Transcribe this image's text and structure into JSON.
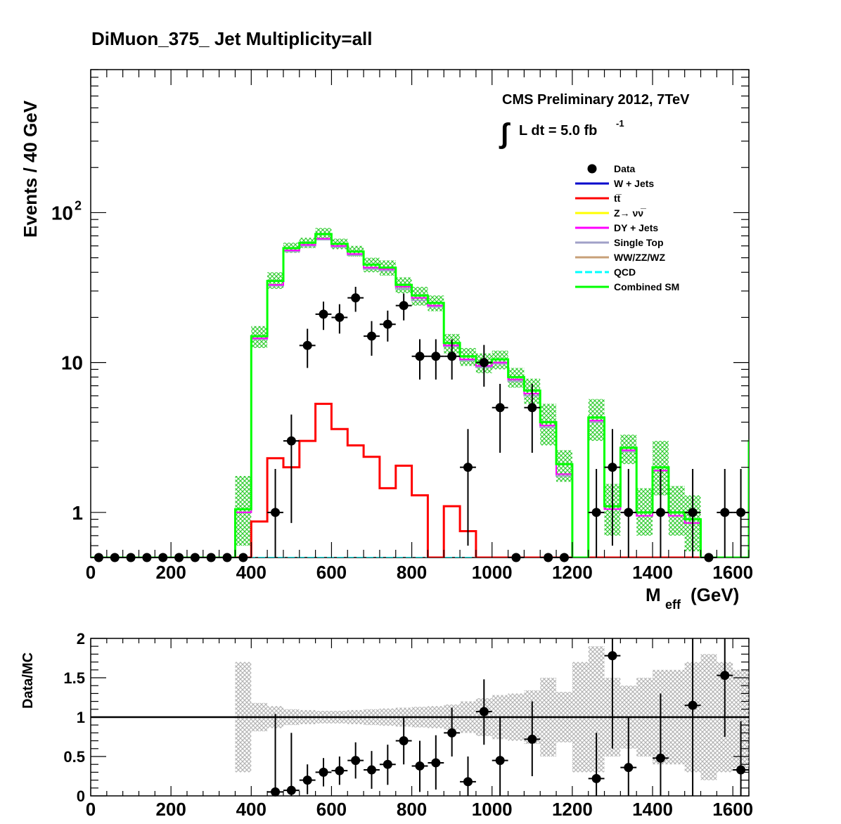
{
  "chart_data": [
    {
      "type": "step-histogram",
      "panel": "main",
      "title": "DiMuon_375_    Jet Multiplicity=all",
      "xlabel_main": "M",
      "xlabel_sub": "eff",
      "xlabel_unit": "(GeV)",
      "ylabel": "Events / 40 GeV",
      "y_scale": "log",
      "xlim": [
        0,
        1640
      ],
      "ylim": [
        0.5,
        900
      ],
      "x_ticks": [
        0,
        200,
        400,
        600,
        800,
        1000,
        1200,
        1400,
        1600
      ],
      "x_tick_labels": [
        "0",
        "200",
        "400",
        "600",
        "800",
        "1000",
        "1200",
        "1400",
        "1600"
      ],
      "y_tick_labels": [
        {
          "value": 1,
          "label": "1"
        },
        {
          "value": 10,
          "label": "10"
        },
        {
          "value": 100,
          "label_base": "10",
          "label_exp": "2"
        }
      ],
      "annotation": {
        "line1": "CMS Preliminary 2012, 7TeV",
        "integral": "∫",
        "lumi_text": "L dt = 5.0 fb",
        "lumi_exp": "-1"
      },
      "bin_width": 40,
      "bin_edges_start": 0,
      "legend": [
        {
          "label": "Data",
          "style": "marker",
          "color": "#000000"
        },
        {
          "label": "W + Jets",
          "color": "#0000cc"
        },
        {
          "label": "tt̅",
          "color": "#ff0000"
        },
        {
          "label": "Z→ νν̅",
          "color": "#ffff00"
        },
        {
          "label": "DY + Jets",
          "color": "#ff00ff"
        },
        {
          "label": "Single Top",
          "color": "#a0a0c8"
        },
        {
          "label": "WW/ZZ/WZ",
          "color": "#c8a078"
        },
        {
          "label": "QCD",
          "color": "#00ffff",
          "style": "dashed"
        },
        {
          "label": "Combined SM",
          "color": "#00ff00"
        }
      ],
      "series": [
        {
          "name": "Combined SM",
          "color": "#00ff00",
          "values": [
            0.5,
            0.5,
            0.5,
            0.5,
            0.5,
            0.5,
            0.5,
            0.5,
            0.5,
            1.05,
            15,
            35,
            58,
            63,
            72,
            62,
            55,
            45,
            43,
            33,
            28,
            25,
            13.5,
            11,
            10,
            10.5,
            8,
            6.5,
            4,
            2.1,
            0.45,
            4.3,
            1.1,
            2.7,
            1.0,
            2.0,
            1.0,
            0.9,
            0.5,
            0.5,
            0.5,
            3.0
          ],
          "band_low": [
            0.5,
            0.5,
            0.5,
            0.5,
            0.5,
            0.5,
            0.5,
            0.5,
            0.5,
            0.6,
            12.5,
            31,
            54,
            58,
            66,
            57,
            51,
            40,
            38,
            29,
            24,
            22,
            11.5,
            9.5,
            8.5,
            9,
            6.8,
            5.3,
            2.8,
            1.6,
            0.45,
            3.0,
            0.7,
            2.1,
            0.7,
            1.3,
            0.7,
            0.55,
            0.5,
            0.5,
            0.5,
            1.8
          ],
          "band_high": [
            0.5,
            0.5,
            0.5,
            0.5,
            0.5,
            0.5,
            0.5,
            0.5,
            0.5,
            1.75,
            17.5,
            40,
            63,
            68,
            79,
            67,
            60,
            50,
            48,
            37,
            32,
            28,
            15.5,
            12.5,
            11.5,
            12,
            9.2,
            7.8,
            5.3,
            2.6,
            0.45,
            5.7,
            1.55,
            3.3,
            1.45,
            3.0,
            1.5,
            1.3,
            0.5,
            0.5,
            0.5,
            4.7
          ]
        },
        {
          "name": "DY + Jets",
          "color": "#ff00ff",
          "values": [
            0.5,
            0.5,
            0.5,
            0.5,
            0.5,
            0.5,
            0.5,
            0.5,
            0.5,
            1.0,
            14.5,
            33,
            56,
            61,
            67,
            60,
            53,
            43,
            42,
            32,
            27,
            24,
            13,
            10.5,
            9.5,
            10,
            7.7,
            6.2,
            3.8,
            1.8,
            0.45,
            4.1,
            1.05,
            2.6,
            0.95,
            1.9,
            0.95,
            0.85,
            0.5,
            0.5,
            0.5,
            2.4
          ]
        },
        {
          "name": "Single Top",
          "color": "#a0a0c8",
          "values": [
            0.5,
            0.5,
            0.5,
            0.5,
            0.5,
            0.5,
            0.5,
            0.5,
            0.5,
            1.0,
            14.3,
            32.5,
            55,
            60,
            66,
            59,
            52,
            42,
            41,
            31,
            26,
            23.5,
            12.8,
            10.3,
            9.3,
            9.8,
            7.5,
            6.0,
            3.7,
            1.75,
            0.45,
            4.0,
            1.05,
            2.55,
            0.95,
            1.9,
            0.95,
            0.85,
            0.5,
            0.5,
            0.5,
            2.4
          ]
        },
        {
          "name": "tt̅",
          "color": "#ff0000",
          "values": [
            0.4,
            0.4,
            0.4,
            0.4,
            0.4,
            0.4,
            0.4,
            0.4,
            0.4,
            0.4,
            0.87,
            2.3,
            2.0,
            3.0,
            5.3,
            3.6,
            2.8,
            2.35,
            1.45,
            2.05,
            1.3,
            0.4,
            1.1,
            0.75,
            0.4,
            0.4,
            0.4,
            0.4,
            0.4,
            0.4,
            0.4,
            0.4,
            0.4,
            0.4,
            0.4,
            0.4,
            0.4,
            0.4,
            0.4,
            0.4,
            0.4,
            0.6
          ]
        },
        {
          "name": "QCD",
          "color": "#00ffff",
          "values": [
            0.5,
            0.5,
            0.5,
            0.5,
            0.5,
            0.5,
            0.5,
            0.5,
            0.5,
            0.5,
            0.5,
            0.5,
            0.5,
            0.5,
            0.5,
            0.5,
            0.5,
            0.5,
            0.5,
            0.5,
            0.5,
            0.5,
            0.5,
            0.5,
            0.5,
            0.5,
            0.5,
            0.5,
            0.5,
            0.5,
            0.5,
            0.5,
            0.5,
            0.5,
            0.5,
            0.5,
            0.5,
            0.5,
            0.5,
            0.5,
            0.5,
            0.5
          ]
        }
      ],
      "data_points": [
        {
          "x": 20,
          "y": 0.5,
          "err": 0
        },
        {
          "x": 60,
          "y": 0.5,
          "err": 0
        },
        {
          "x": 100,
          "y": 0.5,
          "err": 0
        },
        {
          "x": 140,
          "y": 0.5,
          "err": 0
        },
        {
          "x": 180,
          "y": 0.5,
          "err": 0
        },
        {
          "x": 220,
          "y": 0.5,
          "err": 0
        },
        {
          "x": 260,
          "y": 0.5,
          "err": 0
        },
        {
          "x": 300,
          "y": 0.5,
          "err": 0
        },
        {
          "x": 340,
          "y": 0.5,
          "err": 0
        },
        {
          "x": 380,
          "y": 0.5,
          "err": 0
        },
        {
          "x": 460,
          "y": 1,
          "lo": 0.5,
          "hi": 1.95
        },
        {
          "x": 500,
          "y": 3,
          "lo": 0.85,
          "hi": 4.5
        },
        {
          "x": 540,
          "y": 13,
          "lo": 9.2,
          "hi": 16.8
        },
        {
          "x": 580,
          "y": 21,
          "lo": 16.5,
          "hi": 25.5
        },
        {
          "x": 620,
          "y": 20,
          "lo": 15.6,
          "hi": 24.5
        },
        {
          "x": 660,
          "y": 27,
          "lo": 21.8,
          "hi": 32
        },
        {
          "x": 700,
          "y": 15,
          "lo": 11.1,
          "hi": 18.9
        },
        {
          "x": 740,
          "y": 18,
          "lo": 13.8,
          "hi": 22.2
        },
        {
          "x": 780,
          "y": 24,
          "lo": 19.1,
          "hi": 28.9
        },
        {
          "x": 820,
          "y": 11,
          "lo": 7.7,
          "hi": 14.3
        },
        {
          "x": 860,
          "y": 11,
          "lo": 7.7,
          "hi": 14.3
        },
        {
          "x": 900,
          "y": 11,
          "lo": 7.7,
          "hi": 14.3
        },
        {
          "x": 940,
          "y": 2,
          "lo": 0.6,
          "hi": 3.6
        },
        {
          "x": 980,
          "y": 10,
          "lo": 6.9,
          "hi": 13.1
        },
        {
          "x": 1020,
          "y": 5,
          "lo": 2.5,
          "hi": 7.2
        },
        {
          "x": 1060,
          "y": 0.5,
          "err": 0
        },
        {
          "x": 1100,
          "y": 5,
          "lo": 2.5,
          "hi": 7.2
        },
        {
          "x": 1140,
          "y": 0.5,
          "err": 0
        },
        {
          "x": 1180,
          "y": 0.5,
          "err": 0
        },
        {
          "x": 1260,
          "y": 1,
          "lo": 0.5,
          "hi": 1.95
        },
        {
          "x": 1300,
          "y": 2,
          "lo": 0.6,
          "hi": 3.6
        },
        {
          "x": 1340,
          "y": 1,
          "lo": 0.5,
          "hi": 1.95
        },
        {
          "x": 1420,
          "y": 1,
          "lo": 0.5,
          "hi": 1.95
        },
        {
          "x": 1500,
          "y": 1,
          "lo": 0.5,
          "hi": 1.95
        },
        {
          "x": 1540,
          "y": 0.5,
          "err": 0
        },
        {
          "x": 1580,
          "y": 1,
          "lo": 0.5,
          "hi": 1.95
        },
        {
          "x": 1620,
          "y": 1,
          "lo": 0.5,
          "hi": 1.95
        }
      ]
    },
    {
      "type": "ratio",
      "panel": "ratio",
      "ylabel": "Data/MC",
      "xlim": [
        0,
        1640
      ],
      "ylim": [
        0,
        2
      ],
      "y_ticks": [
        0,
        0.5,
        1,
        1.5,
        2
      ],
      "y_tick_labels": [
        "0",
        "0.5",
        "1",
        "1.5",
        "2"
      ],
      "x_ticks": [
        0,
        200,
        400,
        600,
        800,
        1000,
        1200,
        1400,
        1600
      ],
      "x_tick_labels": [
        "0",
        "200",
        "400",
        "600",
        "800",
        "1000",
        "1200",
        "1400",
        "1600"
      ],
      "reference_line": 1,
      "band": {
        "bin_width": 40,
        "starts": [
          360,
          400,
          440,
          480,
          520,
          560,
          600,
          640,
          680,
          720,
          760,
          800,
          840,
          880,
          920,
          960,
          1000,
          1040,
          1080,
          1120,
          1160,
          1200,
          1240,
          1280,
          1320,
          1360,
          1400,
          1440,
          1480,
          1520,
          1560,
          1600
        ],
        "low": [
          0.3,
          0.82,
          0.86,
          0.9,
          0.91,
          0.92,
          0.92,
          0.91,
          0.9,
          0.89,
          0.88,
          0.87,
          0.86,
          0.84,
          0.8,
          0.76,
          0.72,
          0.7,
          0.66,
          0.5,
          0.68,
          0.3,
          0.3,
          0.5,
          0.6,
          0.5,
          0.4,
          0.4,
          0.3,
          0.2,
          0.3,
          0.35
        ],
        "high": [
          1.7,
          1.18,
          1.14,
          1.1,
          1.09,
          1.08,
          1.08,
          1.09,
          1.1,
          1.11,
          1.12,
          1.13,
          1.14,
          1.16,
          1.2,
          1.24,
          1.28,
          1.3,
          1.34,
          1.5,
          1.32,
          1.7,
          1.9,
          1.5,
          1.4,
          1.5,
          1.6,
          1.6,
          1.7,
          1.8,
          1.7,
          1.6
        ]
      },
      "points": [
        {
          "x": 460,
          "y": 0.05,
          "lo": 0,
          "hi": 1.04
        },
        {
          "x": 500,
          "y": 0.07,
          "lo": 0,
          "hi": 0.8
        },
        {
          "x": 540,
          "y": 0.2,
          "lo": 0.02,
          "hi": 0.4
        },
        {
          "x": 580,
          "y": 0.3,
          "lo": 0.12,
          "hi": 0.48
        },
        {
          "x": 620,
          "y": 0.32,
          "lo": 0.14,
          "hi": 0.5
        },
        {
          "x": 660,
          "y": 0.45,
          "lo": 0.22,
          "hi": 0.68
        },
        {
          "x": 700,
          "y": 0.33,
          "lo": 0.09,
          "hi": 0.57
        },
        {
          "x": 740,
          "y": 0.4,
          "lo": 0.14,
          "hi": 0.65
        },
        {
          "x": 780,
          "y": 0.7,
          "lo": 0.4,
          "hi": 1.0
        },
        {
          "x": 820,
          "y": 0.38,
          "lo": 0.05,
          "hi": 0.7
        },
        {
          "x": 860,
          "y": 0.42,
          "lo": 0.08,
          "hi": 0.77
        },
        {
          "x": 900,
          "y": 0.8,
          "lo": 0.5,
          "hi": 1.12
        },
        {
          "x": 940,
          "y": 0.18,
          "lo": 0,
          "hi": 0.5
        },
        {
          "x": 980,
          "y": 1.07,
          "lo": 0.65,
          "hi": 1.48
        },
        {
          "x": 1020,
          "y": 0.45,
          "lo": 0,
          "hi": 1.0
        },
        {
          "x": 1100,
          "y": 0.72,
          "lo": 0.25,
          "hi": 1.2
        },
        {
          "x": 1260,
          "y": 0.22,
          "lo": 0,
          "hi": 0.8
        },
        {
          "x": 1300,
          "y": 1.78,
          "lo": 0.6,
          "hi": 2.0
        },
        {
          "x": 1340,
          "y": 0.36,
          "lo": 0,
          "hi": 1.0
        },
        {
          "x": 1420,
          "y": 0.48,
          "lo": 0,
          "hi": 1.3
        },
        {
          "x": 1500,
          "y": 1.15,
          "lo": 0,
          "hi": 2.0
        },
        {
          "x": 1580,
          "y": 1.53,
          "lo": 0.75,
          "hi": 2.0
        },
        {
          "x": 1620,
          "y": 0.33,
          "lo": 0,
          "hi": 0.95
        }
      ]
    }
  ]
}
